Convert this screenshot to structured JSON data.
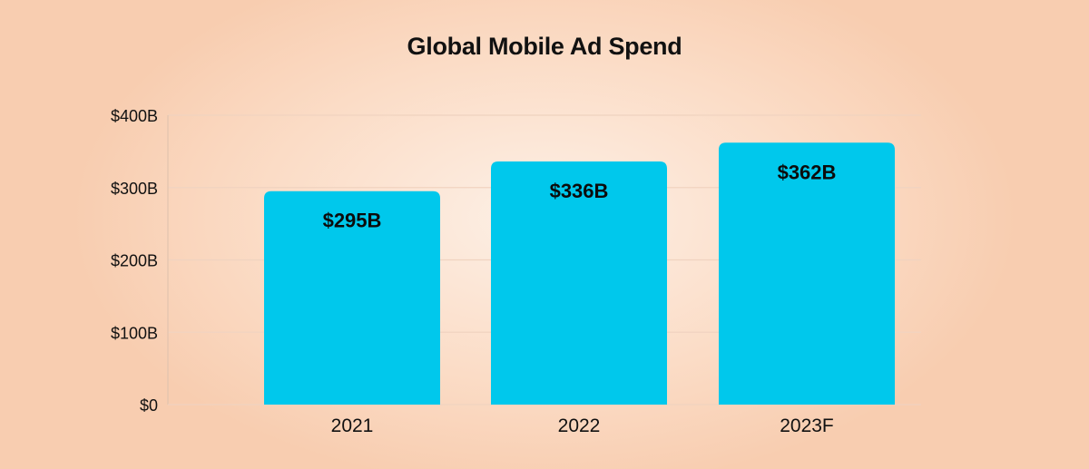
{
  "chart_data": {
    "type": "bar",
    "title": "Global Mobile Ad Spend",
    "xlabel": "",
    "ylabel": "",
    "categories": [
      "2021",
      "2022",
      "2023F"
    ],
    "values": [
      295,
      336,
      362
    ],
    "data_labels": [
      "$295B",
      "$336B",
      "$362B"
    ],
    "ylim": [
      0,
      400
    ],
    "yticks": [
      0,
      100,
      200,
      300,
      400
    ],
    "ytick_labels": [
      "$0",
      "$100B",
      "$200B",
      "$300B",
      "$400B"
    ],
    "grid": true,
    "legend": "none",
    "colors": {
      "bar": "#00c8ec",
      "grid": "#f0d3c0",
      "axis": "#e2c3ae"
    }
  }
}
